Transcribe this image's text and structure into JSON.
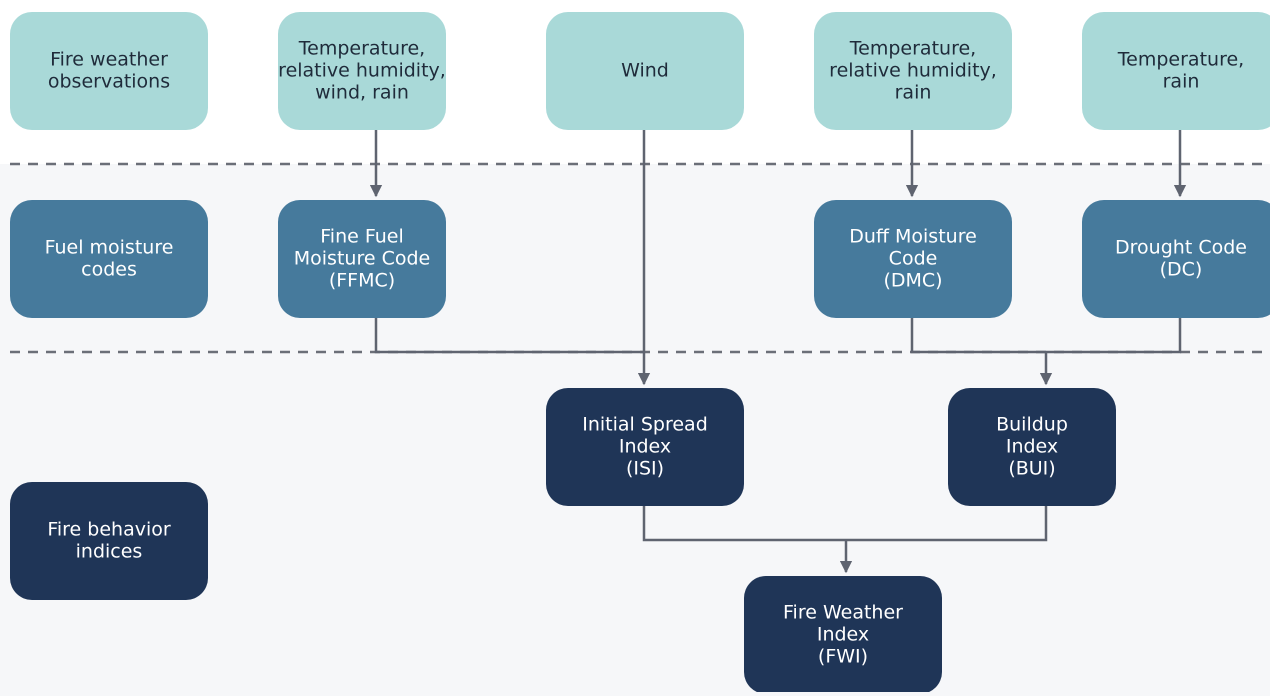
{
  "nodes": [
    {
      "lines": [
        "Fire weather",
        "observations"
      ]
    },
    {
      "lines": [
        "Temperature,",
        "relative humidity,",
        "wind, rain"
      ]
    },
    {
      "lines": [
        "Wind"
      ]
    },
    {
      "lines": [
        "Temperature,",
        "relative humidity,",
        "rain"
      ]
    },
    {
      "lines": [
        "Temperature,",
        "rain"
      ]
    },
    {
      "lines": [
        "Fuel moisture",
        "codes"
      ]
    },
    {
      "lines": [
        "Fine Fuel",
        "Moisture Code",
        "(FFMC)"
      ]
    },
    {
      "lines": [
        "Duff Moisture",
        "Code",
        "(DMC)"
      ]
    },
    {
      "lines": [
        "Drought Code",
        "(DC)"
      ]
    },
    {
      "lines": [
        "Initial Spread",
        "Index",
        "(ISI)"
      ]
    },
    {
      "lines": [
        "Buildup",
        "Index",
        "(BUI)"
      ]
    },
    {
      "lines": [
        "Fire behavior",
        "indices"
      ]
    },
    {
      "lines": [
        "Fire Weather",
        "Index",
        "(FWI)"
      ]
    }
  ]
}
